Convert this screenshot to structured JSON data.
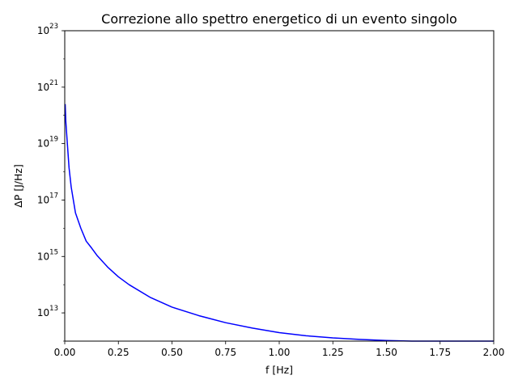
{
  "chart_data": {
    "type": "line",
    "title": "Correzione allo spettro energetico di un evento singolo",
    "xlabel": "f [Hz]",
    "ylabel": "ΔP [J/Hz]",
    "xscale": "linear",
    "yscale": "log",
    "xlim": [
      0.0,
      2.0
    ],
    "ylim": [
      1000000000000.0,
      1e+23
    ],
    "grid": false,
    "x_ticks": [
      {
        "value": 0.0,
        "label": "0.00"
      },
      {
        "value": 0.25,
        "label": "0.25"
      },
      {
        "value": 0.5,
        "label": "0.50"
      },
      {
        "value": 0.75,
        "label": "0.75"
      },
      {
        "value": 1.0,
        "label": "1.00"
      },
      {
        "value": 1.25,
        "label": "1.25"
      },
      {
        "value": 1.5,
        "label": "1.50"
      },
      {
        "value": 1.75,
        "label": "1.75"
      },
      {
        "value": 2.0,
        "label": "2.00"
      }
    ],
    "y_ticks": [
      {
        "value": 10000000000000.0,
        "base": "10",
        "exp": "13"
      },
      {
        "value": 1000000000000000.0,
        "base": "10",
        "exp": "15"
      },
      {
        "value": 1e+17,
        "base": "10",
        "exp": "17"
      },
      {
        "value": 1e+19,
        "base": "10",
        "exp": "19"
      },
      {
        "value": 1e+21,
        "base": "10",
        "exp": "21"
      },
      {
        "value": 1e+23,
        "base": "10",
        "exp": "23"
      }
    ],
    "series": [
      {
        "color": "#0000ff",
        "x": [
          0.002,
          0.005,
          0.01,
          0.02,
          0.03,
          0.05,
          0.075,
          0.1,
          0.125,
          0.15,
          0.2,
          0.25,
          0.3,
          0.4,
          0.5,
          0.625,
          0.75,
          0.875,
          1.0,
          1.125,
          1.25,
          1.375,
          1.5,
          1.625,
          1.75,
          1.875,
          2.0
        ],
        "y": [
          2.5e+20,
          6e+19,
          1.7e+19,
          1.4e+18,
          2.9e+17,
          3.5e+16,
          1e+16,
          3500000000000000.0,
          2000000000000000.0,
          1100000000000000.0,
          420000000000000.0,
          190000000000000.0,
          100000000000000.0,
          35000000000000.0,
          16000000000000.0,
          8000000000000.0,
          4500000000000.0,
          2900000000000.0,
          2000000000000.0,
          1550000000000.0,
          1300000000000.0,
          1150000000000.0,
          1050000000000.0,
          980000000000.0,
          930000000000.0,
          910000000000.0,
          890000000000.0
        ]
      }
    ]
  }
}
